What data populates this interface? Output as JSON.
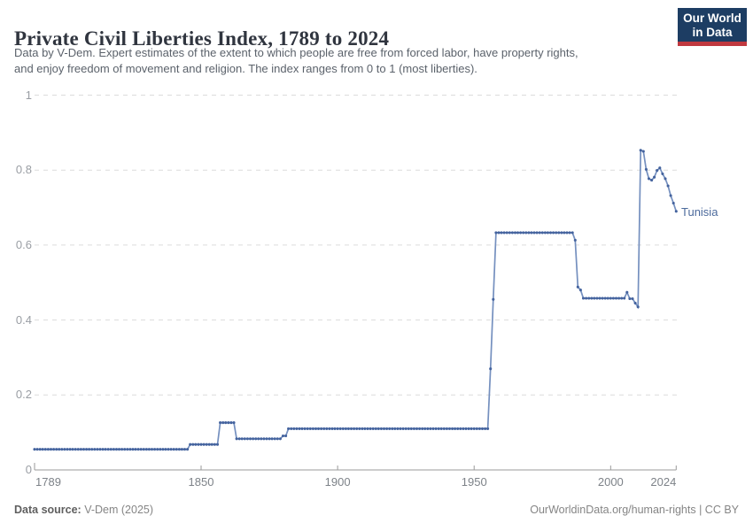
{
  "header": {
    "title": "Private Civil Liberties Index, 1789 to 2024",
    "subtitle_line1": "Data by V-Dem. Expert estimates of the extent to which people are free from forced labor, have property rights,",
    "subtitle_line2": "and enjoy freedom of movement and religion. The index ranges from 0 to 1 (most liberties).",
    "logo": {
      "line1": "Our World",
      "line2": "in Data",
      "bg_color": "#1d3d63",
      "bar_color": "#c0383f"
    }
  },
  "chart_data": {
    "type": "line",
    "title": "Private Civil Liberties Index, 1789 to 2024",
    "xlabel": "",
    "ylabel": "",
    "xlim": [
      1789,
      2024
    ],
    "ylim": [
      0,
      1
    ],
    "grid": "dashed-horizontal",
    "legend_position": "end-of-line-label",
    "x_ticks": [
      {
        "year": 1789,
        "label": "1789"
      },
      {
        "year": 1850,
        "label": "1850"
      },
      {
        "year": 1900,
        "label": "1900"
      },
      {
        "year": 1950,
        "label": "1950"
      },
      {
        "year": 2000,
        "label": "2000"
      },
      {
        "year": 2024,
        "label": "2024"
      }
    ],
    "y_ticks": [
      {
        "value": 0,
        "label": "0"
      },
      {
        "value": 0.2,
        "label": "0.2"
      },
      {
        "value": 0.4,
        "label": "0.4"
      },
      {
        "value": 0.6,
        "label": "0.6"
      },
      {
        "value": 0.8,
        "label": "0.8"
      },
      {
        "value": 1,
        "label": "1"
      }
    ],
    "series": [
      {
        "name": "Tunisia",
        "color": "#4c6a9c",
        "marker_color": "#44639e",
        "connector_color": "#7590bf",
        "step_segments_year_start_end_value": [
          [
            1789,
            1845,
            0.055
          ],
          [
            1846,
            1856,
            0.068
          ],
          [
            1857,
            1862,
            0.126
          ],
          [
            1863,
            1879,
            0.083
          ],
          [
            1880,
            1881,
            0.091
          ],
          [
            1882,
            1955,
            0.11
          ],
          [
            1956,
            1956,
            0.27
          ],
          [
            1957,
            1957,
            0.455
          ],
          [
            1958,
            1986,
            0.633
          ],
          [
            1987,
            1987,
            0.613
          ],
          [
            1988,
            1988,
            0.488
          ],
          [
            1989,
            1989,
            0.48
          ],
          [
            1990,
            2005,
            0.458
          ],
          [
            2006,
            2006,
            0.474
          ],
          [
            2007,
            2008,
            0.457
          ],
          [
            2009,
            2009,
            0.445
          ],
          [
            2010,
            2010,
            0.435
          ],
          [
            2011,
            2011,
            0.853
          ],
          [
            2012,
            2012,
            0.85
          ],
          [
            2013,
            2013,
            0.802
          ],
          [
            2014,
            2014,
            0.777
          ],
          [
            2015,
            2015,
            0.773
          ],
          [
            2016,
            2016,
            0.781
          ],
          [
            2017,
            2017,
            0.799
          ],
          [
            2018,
            2018,
            0.806
          ],
          [
            2019,
            2019,
            0.79
          ],
          [
            2020,
            2020,
            0.777
          ],
          [
            2021,
            2021,
            0.758
          ],
          [
            2022,
            2022,
            0.732
          ],
          [
            2023,
            2023,
            0.712
          ],
          [
            2024,
            2024,
            0.69
          ]
        ]
      }
    ],
    "entity_label": "Tunisia",
    "colors": {
      "gridline": "#dcdcdc",
      "axis": "#9a9a9a",
      "tick_label": "#7d8288"
    }
  },
  "footer": {
    "source_label": "Data source:",
    "source_value": " V-Dem (2025)",
    "right_text": "OurWorldinData.org/human-rights | CC BY"
  }
}
